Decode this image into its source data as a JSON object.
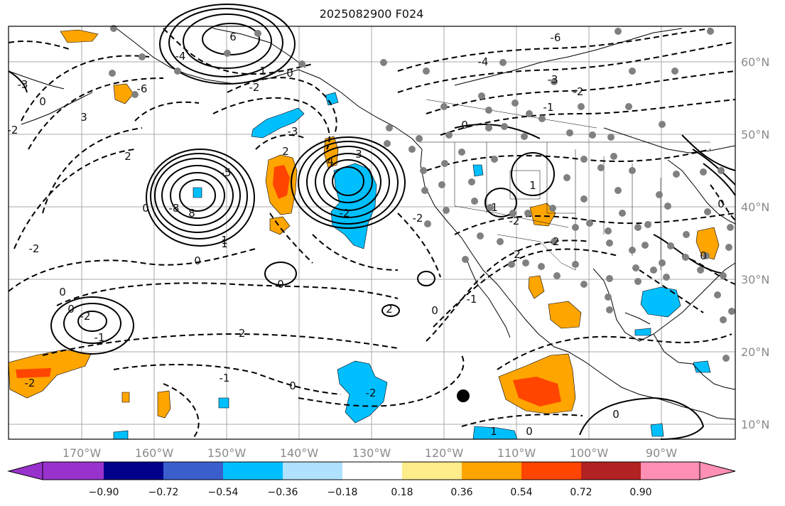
{
  "title": "2025082900 F024",
  "map": {
    "lon_labels": [
      "170°W",
      "160°W",
      "150°W",
      "140°W",
      "130°W",
      "120°W",
      "110°W",
      "100°W",
      "90°W"
    ],
    "lat_labels": [
      "60°N",
      "50°N",
      "40°N",
      "30°N",
      "20°N",
      "10°N"
    ],
    "contour_labels": [
      "6",
      "-6",
      "1",
      "0",
      "-4",
      "-3",
      "3",
      "2",
      "-2",
      "-1",
      "0",
      "-3",
      "-2",
      "4",
      "-8",
      "8",
      "-5",
      "3",
      "-2",
      "-2",
      "0",
      "-2",
      "1",
      "2",
      "-2",
      "1",
      "0",
      "0",
      "-2",
      "-1",
      "0",
      "-2",
      "-6",
      "-3",
      "-4",
      "-2",
      "-1",
      "0",
      "1",
      "1",
      "0",
      "-2",
      "-2",
      "0",
      "0",
      "0",
      "1",
      "2",
      "0",
      "0",
      "-1",
      "0",
      "-2",
      "2"
    ]
  },
  "colorbar": {
    "ticks": [
      "−0.90",
      "−0.72",
      "−0.54",
      "−0.36",
      "−0.18",
      "0.18",
      "0.36",
      "0.54",
      "0.72",
      "0.90"
    ],
    "colors": [
      "#9932cc",
      "#00008b",
      "#3a5fcd",
      "#00bfff",
      "#b0e2ff",
      "#ffffff",
      "#ffec8b",
      "#ffa500",
      "#ff4500",
      "#b22222",
      "#ff8fb4"
    ]
  }
}
